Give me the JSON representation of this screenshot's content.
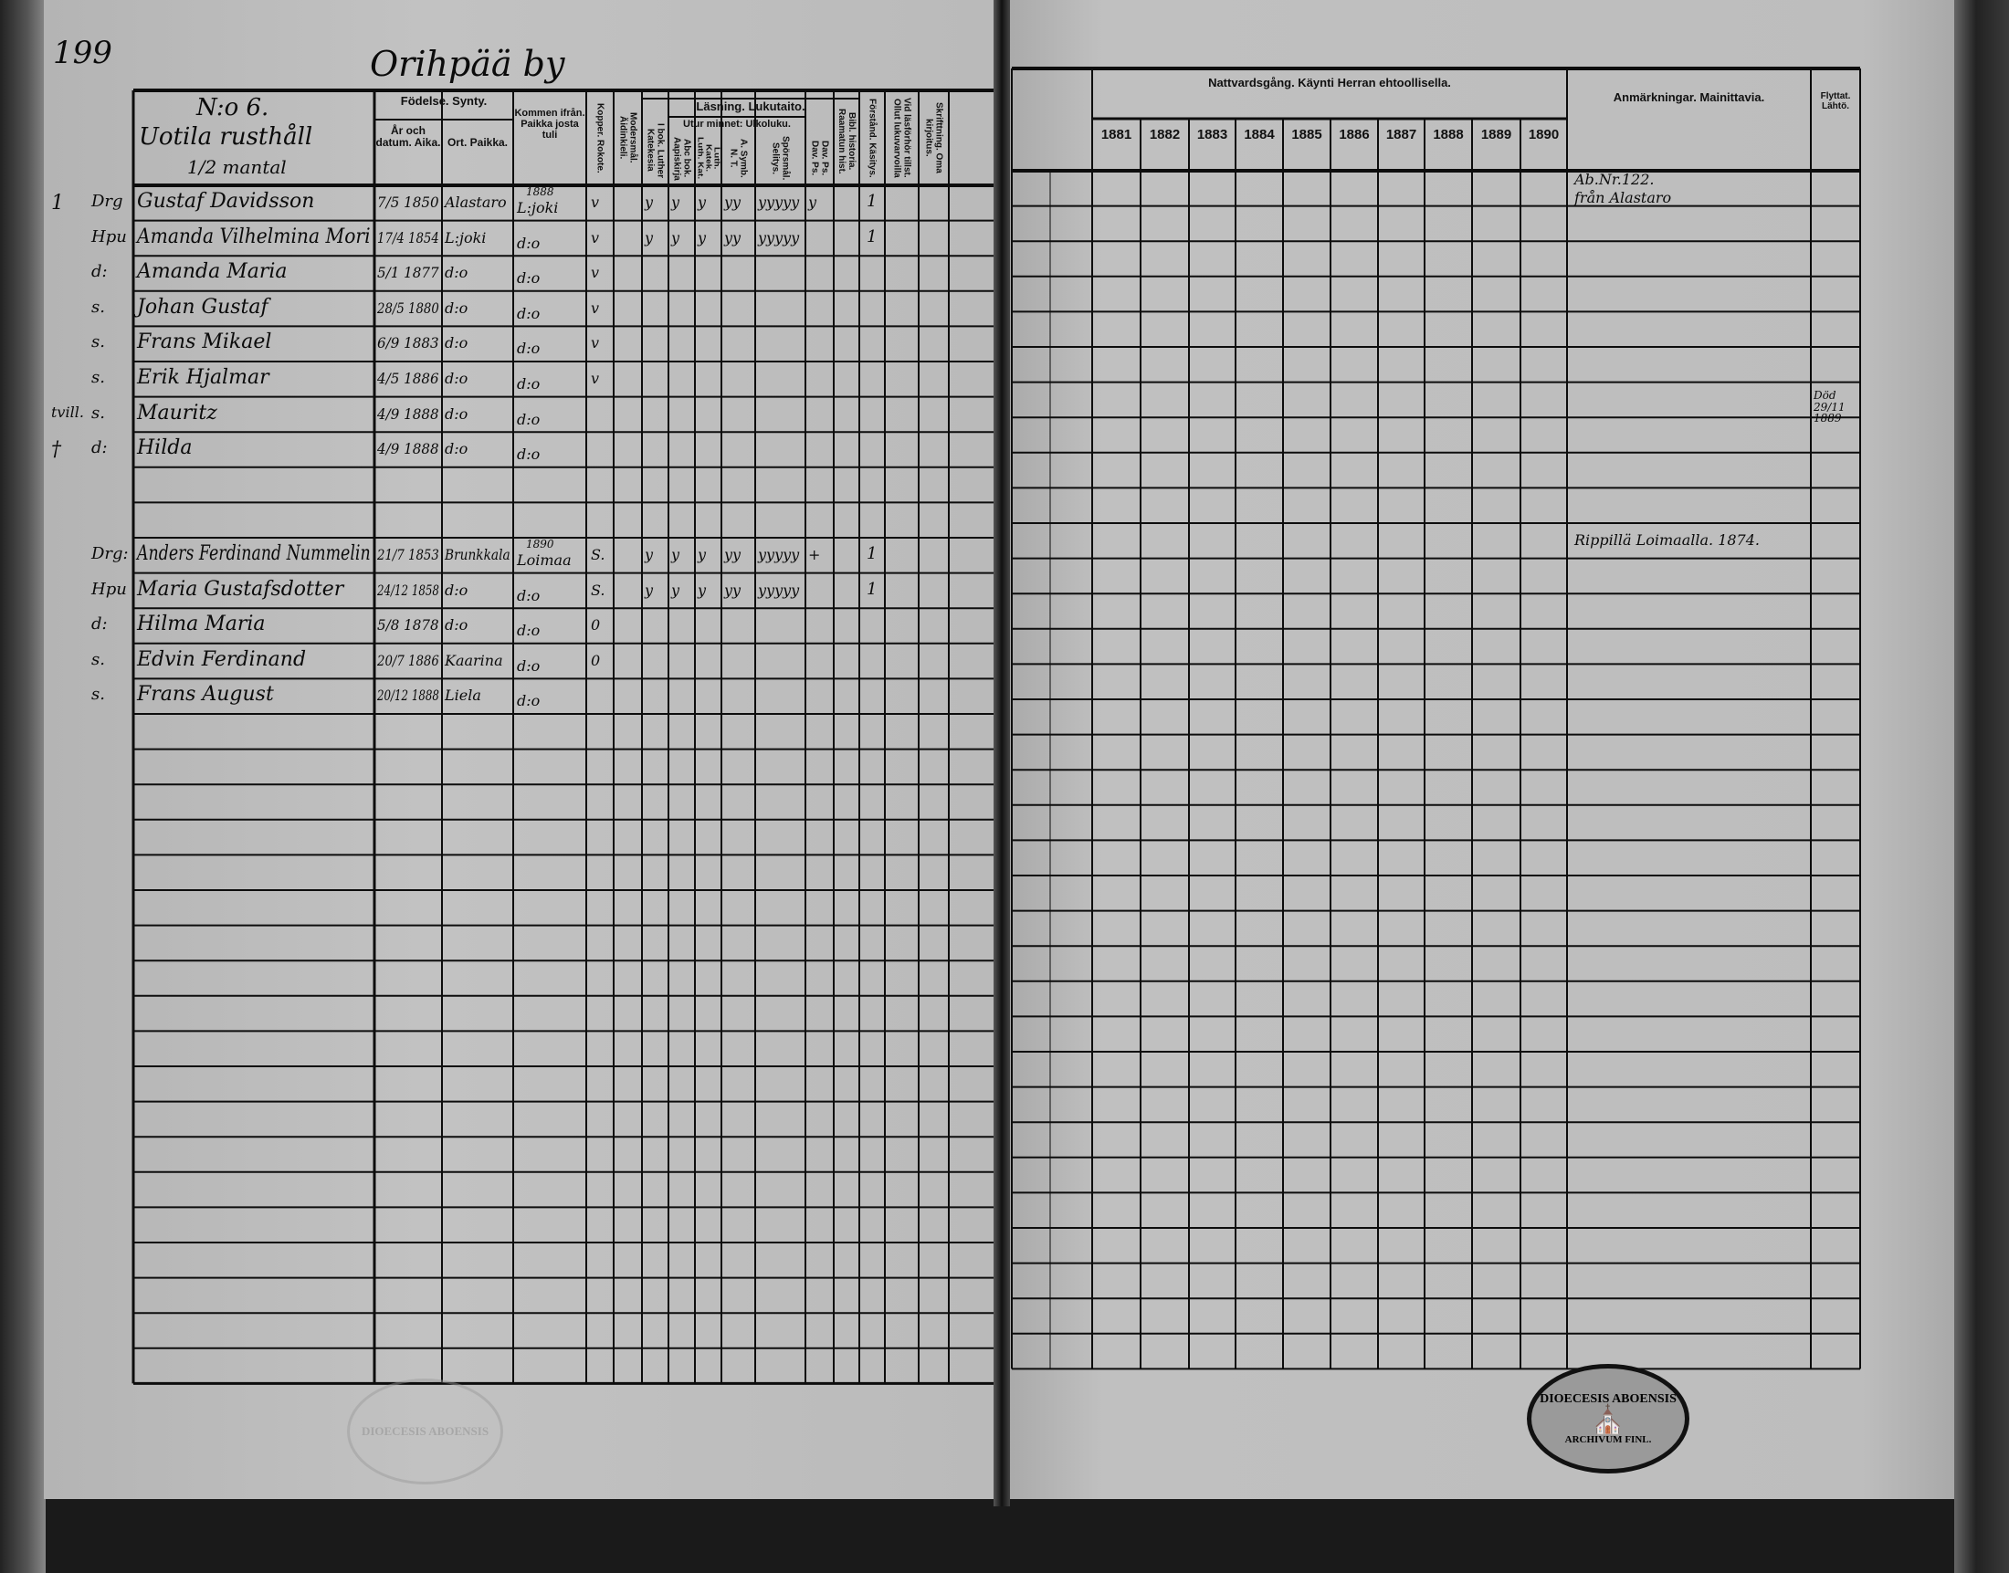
{
  "page_number": "199",
  "village": "Orihpää by",
  "farm": {
    "number": "N:o 6.",
    "name": "Uotila rusthåll",
    "size": "1/2 mantal"
  },
  "left_headers": {
    "fodelse": "Födelse. Synty.",
    "ar": "År och datum. Aika.",
    "ort": "Ort. Paikka.",
    "kommen": "Kommen ifrån. Paikka josta tuli",
    "kopper": "Kopper. Rokote.",
    "modersmal": "Modersmål. Äidinkieli.",
    "lasning": "Läsning. Lukutaito.",
    "utur": "Utur minnet: Ulkoluku.",
    "ibok": "I bok. Luther Katekesia",
    "abc": "Abc bok. Aapiskirja",
    "luth": "Luth. Katek. Luth. Kat.",
    "asymb": "A. Symb. N. T.",
    "sporsmal": "Spörsmål. Selitys.",
    "davps": "Dav. Ps. Dav. Ps.",
    "bibl": "Bibl. historia. Raamatun hist.",
    "forstand": "Förstånd. Käsitys.",
    "vid": "Vid läsförhör tillst. Ollut lukuvarvoilla",
    "skrift": "Skrifttning. Oma kirjoitus."
  },
  "right_headers": {
    "nattvard": "Nattvardsgång. Käynti Herran ehtoollisella.",
    "years": [
      "1881",
      "1882",
      "1883",
      "1884",
      "1885",
      "1886",
      "1887",
      "1888",
      "1889",
      "1890"
    ],
    "remarks": "Anmärkningar. Mainittavia.",
    "moved": "Flyttat. Lähtö."
  },
  "rows": [
    {
      "margin": "1",
      "prefix": "Drg",
      "name": "Gustaf Davidsson",
      "date": "7/5 1850",
      "place": "Alastaro",
      "from_year": "1888",
      "from": "L:joki",
      "kopper": "v",
      "marks": [
        "y",
        "y",
        "y",
        "yy",
        "yyyyy",
        "y"
      ],
      "forstand": "1",
      "remark": "Ab.Nr.122.",
      "remark2": "från Alastaro"
    },
    {
      "prefix": "Hpu",
      "name": "Amanda Vilhelmina Mori",
      "date": "17/4 1854",
      "place": "L:joki",
      "from": "d:o",
      "kopper": "v",
      "marks": [
        "y",
        "y",
        "y",
        "yy",
        "yyyyy",
        ""
      ],
      "forstand": "1"
    },
    {
      "prefix": "d:",
      "name": "Amanda Maria",
      "date": "5/1 1877",
      "place": "d:o",
      "from": "d:o",
      "kopper": "v"
    },
    {
      "prefix": "s.",
      "name": "Johan Gustaf",
      "date": "28/5 1880",
      "place": "d:o",
      "from": "d:o",
      "kopper": "v"
    },
    {
      "prefix": "s.",
      "name": "Frans Mikael",
      "date": "6/9 1883",
      "place": "d:o",
      "from": "d:o",
      "kopper": "v"
    },
    {
      "prefix": "s.",
      "name": "Erik Hjalmar",
      "date": "4/5 1886",
      "place": "d:o",
      "from": "d:o",
      "kopper": "v"
    },
    {
      "margin": "tvill.",
      "prefix": "s.",
      "name": "Mauritz",
      "date": "4/9 1888",
      "place": "d:o",
      "from": "d:o"
    },
    {
      "margin": "†",
      "prefix": "d:",
      "name": "Hilda",
      "date": "4/9 1888",
      "place": "d:o",
      "from": "d:o",
      "moved": "Död 29/11 1889"
    },
    {},
    {},
    {
      "prefix": "Drg:",
      "name": "Anders Ferdinand Nummelin",
      "date": "21/7 1853",
      "place": "Brunkkala",
      "from_year": "1890",
      "from": "Loimaa",
      "kopper": "S.",
      "marks": [
        "y",
        "y",
        "y",
        "yy",
        "yyyyy",
        "+"
      ],
      "forstand": "1",
      "remark": "Rippillä Loimaalla. 1874."
    },
    {
      "prefix": "Hpu",
      "name": "Maria Gustafsdotter",
      "date": "24/12 1858",
      "place": "d:o",
      "from": "d:o",
      "kopper": "S.",
      "marks": [
        "y",
        "y",
        "y",
        "yy",
        "yyyyy",
        ""
      ],
      "forstand": "1"
    },
    {
      "prefix": "d:",
      "name": "Hilma Maria",
      "date": "5/8 1878",
      "place": "d:o",
      "from": "d:o",
      "kopper": "0"
    },
    {
      "prefix": "s.",
      "name": "Edvin Ferdinand",
      "date": "20/7 1886",
      "place": "Kaarina",
      "from": "d:o",
      "kopper": "0"
    },
    {
      "prefix": "s.",
      "name": "Frans August",
      "date": "20/12 1888",
      "place": "Liela",
      "from": "d:o"
    }
  ],
  "stamp": {
    "text_top": "DIOECESIS ABOENSIS",
    "text_bottom": "ARCHIVUM FINL."
  },
  "stamp_faint": {
    "text": "DIOECESIS ABOENSIS"
  }
}
